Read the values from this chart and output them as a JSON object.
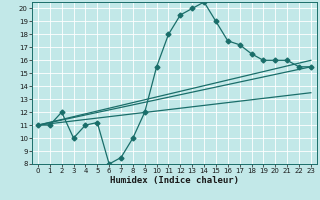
{
  "xlabel": "Humidex (Indice chaleur)",
  "background_color": "#c2e8e8",
  "grid_color": "#ffffff",
  "line_color": "#1a6e6a",
  "xlim": [
    -0.5,
    23.5
  ],
  "ylim": [
    8,
    20.5
  ],
  "xticks": [
    0,
    1,
    2,
    3,
    4,
    5,
    6,
    7,
    8,
    9,
    10,
    11,
    12,
    13,
    14,
    15,
    16,
    17,
    18,
    19,
    20,
    21,
    22,
    23
  ],
  "yticks": [
    8,
    9,
    10,
    11,
    12,
    13,
    14,
    15,
    16,
    17,
    18,
    19,
    20
  ],
  "main_x": [
    0,
    1,
    2,
    3,
    4,
    5,
    6,
    7,
    8,
    9,
    10,
    11,
    12,
    13,
    14,
    15,
    16,
    17,
    18,
    19,
    20,
    21,
    22,
    23
  ],
  "main_y": [
    11,
    11,
    12,
    10.0,
    11,
    11.2,
    8.0,
    8.5,
    10.0,
    12.0,
    15.5,
    18.0,
    19.5,
    20.0,
    20.5,
    19.0,
    17.5,
    17.2,
    16.5,
    16.0,
    16.0,
    16.0,
    15.5,
    15.5
  ],
  "line1_x": [
    0,
    23
  ],
  "line1_y": [
    11.0,
    16.0
  ],
  "line2_x": [
    0,
    23
  ],
  "line2_y": [
    11.0,
    15.5
  ],
  "line3_x": [
    0,
    23
  ],
  "line3_y": [
    11.0,
    13.5
  ],
  "marker_size": 2.5,
  "line_width": 0.9,
  "tick_fontsize": 5,
  "xlabel_fontsize": 6.5
}
